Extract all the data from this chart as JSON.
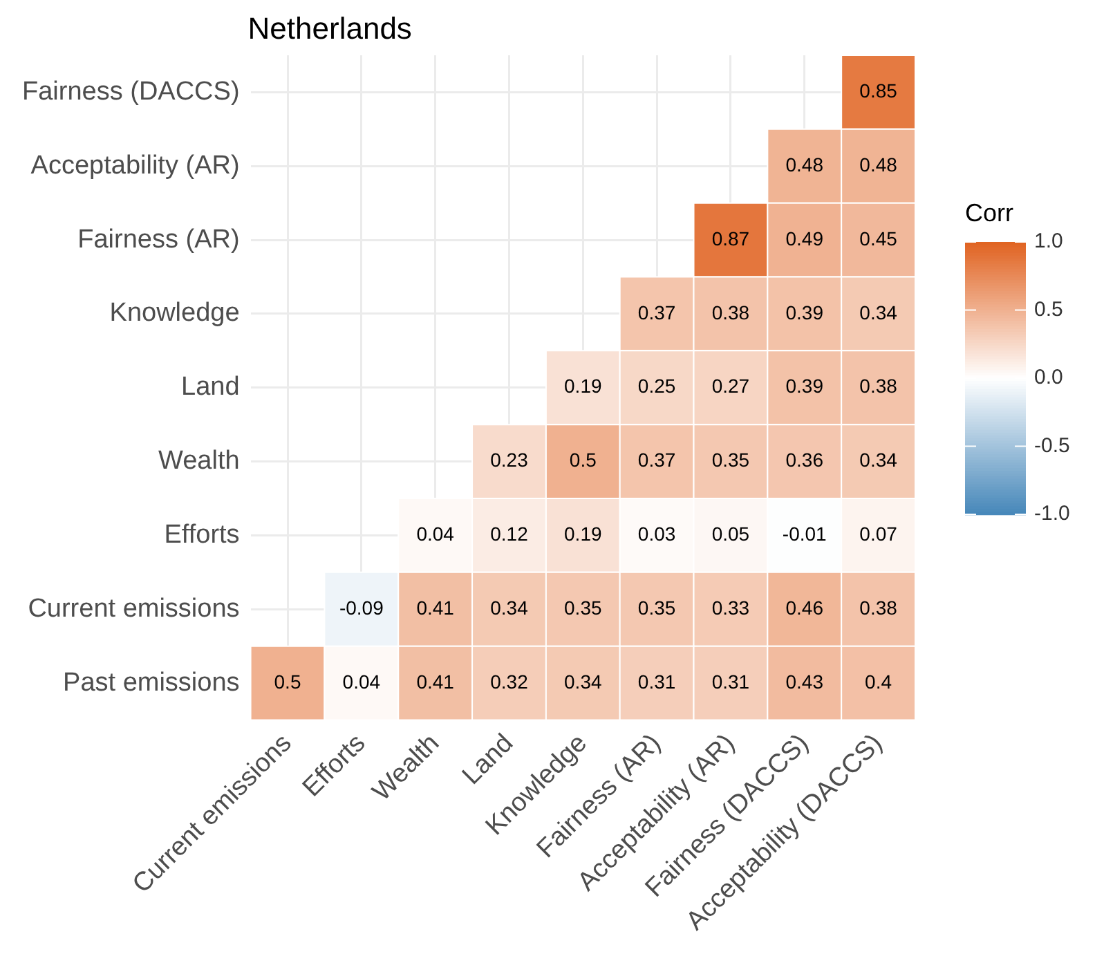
{
  "chart_data": {
    "type": "heatmap",
    "title": "Netherlands",
    "legend_title": "Corr",
    "categories": [
      "Current emissions",
      "Efforts",
      "Wealth",
      "Land",
      "Knowledge",
      "Fairness (AR)",
      "Acceptability (AR)",
      "Fairness (DACCS)",
      "Acceptability (DACCS)"
    ],
    "y_categories": [
      "Fairness (DACCS)",
      "Acceptability (AR)",
      "Fairness (AR)",
      "Knowledge",
      "Land",
      "Wealth",
      "Efforts",
      "Current emissions",
      "Past emissions"
    ],
    "cells": [
      [
        null,
        null,
        null,
        null,
        null,
        null,
        null,
        null,
        0.85
      ],
      [
        null,
        null,
        null,
        null,
        null,
        null,
        null,
        0.48,
        0.48
      ],
      [
        null,
        null,
        null,
        null,
        null,
        null,
        0.87,
        0.49,
        0.45
      ],
      [
        null,
        null,
        null,
        null,
        null,
        0.37,
        0.38,
        0.39,
        0.34
      ],
      [
        null,
        null,
        null,
        null,
        0.19,
        0.25,
        0.27,
        0.39,
        0.38
      ],
      [
        null,
        null,
        null,
        0.23,
        0.5,
        0.37,
        0.35,
        0.36,
        0.34
      ],
      [
        null,
        null,
        0.04,
        0.12,
        0.19,
        0.03,
        0.05,
        -0.01,
        0.07
      ],
      [
        null,
        -0.09,
        0.41,
        0.34,
        0.35,
        0.35,
        0.33,
        0.46,
        0.38
      ],
      [
        0.5,
        0.04,
        0.41,
        0.32,
        0.34,
        0.31,
        0.31,
        0.43,
        0.4
      ]
    ],
    "clim": [
      -1,
      1
    ],
    "cticks": [
      {
        "value": -1,
        "label": "-1.0"
      },
      {
        "value": -0.5,
        "label": "-0.5"
      },
      {
        "value": 0,
        "label": "0.0"
      },
      {
        "value": 0.5,
        "label": "0.5"
      },
      {
        "value": 1,
        "label": "1.0"
      }
    ],
    "data_labels": true,
    "grid": true
  }
}
